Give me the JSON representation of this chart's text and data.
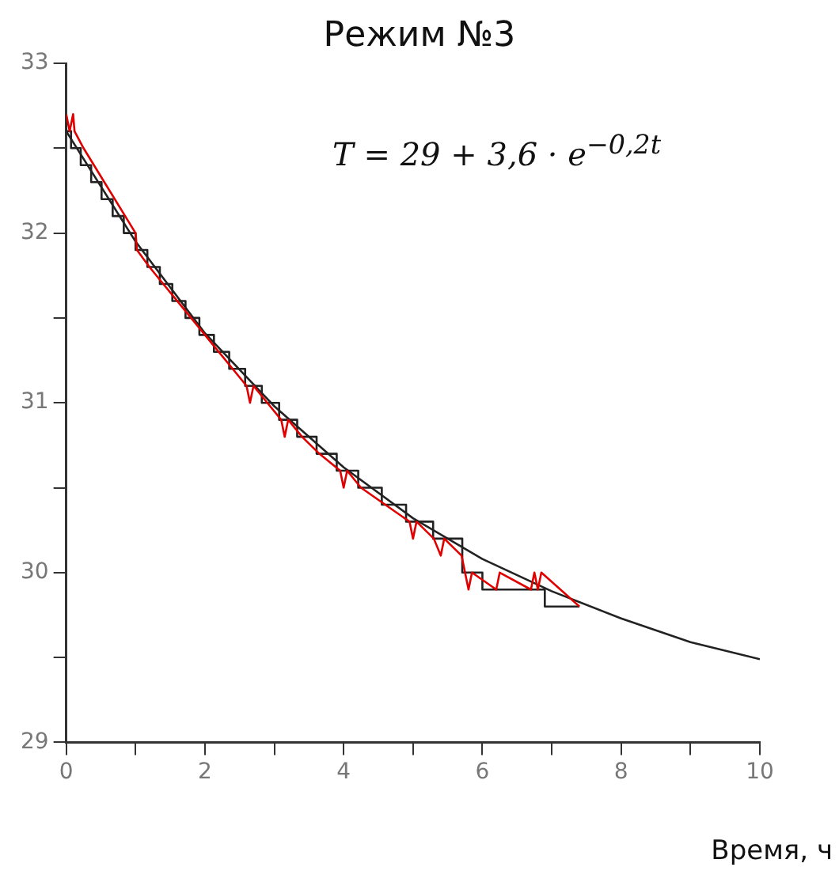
{
  "chart_data": {
    "type": "line",
    "title": "Режим №3",
    "xlabel": "Время, ч",
    "annotations": [
      "T = 29 + 3,6 · e$^{−0,2t}$"
    ],
    "xlim": [
      0,
      10
    ],
    "ylim": [
      29,
      33
    ],
    "xticks": [
      0,
      {
        "value": 1,
        "label": null
      },
      2,
      {
        "value": 3,
        "label": null
      },
      4,
      {
        "value": 5,
        "label": null
      },
      6,
      {
        "value": 7,
        "label": null
      },
      8,
      {
        "value": 9,
        "label": null
      },
      10
    ],
    "yticks": [
      29,
      {
        "value": 29.5,
        "label": null
      },
      30,
      {
        "value": 30.5,
        "label": null
      },
      31,
      {
        "value": 31.5,
        "label": null
      },
      32,
      {
        "value": 32.5,
        "label": null
      },
      33
    ],
    "grid": false,
    "legend": false,
    "marker": "none",
    "line_style": "solid",
    "series": [
      {
        "type": "line",
        "color": "#e00000",
        "x": [
          0,
          0.05,
          0.1,
          0.12,
          0.25,
          0.4,
          0.55,
          0.7,
          0.85,
          1.0,
          1.02,
          1.2,
          1.4,
          1.6,
          1.8,
          2.0,
          2.2,
          2.4,
          2.6,
          2.65,
          2.7,
          2.9,
          3.1,
          3.15,
          3.2,
          3.4,
          3.65,
          3.95,
          4.0,
          4.05,
          4.25,
          4.6,
          4.95,
          5.0,
          5.05,
          5.3,
          5.4,
          5.45,
          5.7,
          5.8,
          5.85,
          6.2,
          6.25,
          6.7,
          6.75,
          6.8,
          6.85,
          7.4
        ],
        "values": [
          32.7,
          32.6,
          32.7,
          32.6,
          32.5,
          32.4,
          32.3,
          32.2,
          32.1,
          32.0,
          31.9,
          31.8,
          31.7,
          31.6,
          31.5,
          31.4,
          31.3,
          31.2,
          31.1,
          31.0,
          31.1,
          31.0,
          30.9,
          30.8,
          30.9,
          30.8,
          30.7,
          30.6,
          30.5,
          30.6,
          30.5,
          30.4,
          30.3,
          30.2,
          30.3,
          30.2,
          30.1,
          30.2,
          30.1,
          29.9,
          30.0,
          29.9,
          30.0,
          29.9,
          30.0,
          29.9,
          30.0,
          29.8
        ]
      },
      {
        "type": "step",
        "color": "#222222",
        "x": [
          0,
          0.07,
          0.21,
          0.36,
          0.51,
          0.67,
          0.83,
          1.0,
          1.17,
          1.35,
          1.53,
          1.72,
          1.92,
          2.13,
          2.35,
          2.58,
          2.82,
          3.07,
          3.33,
          3.61,
          3.9,
          4.21,
          4.55,
          4.9,
          5.29,
          5.71,
          6.0,
          6.9,
          7.4
        ],
        "values": [
          32.7,
          32.6,
          32.5,
          32.4,
          32.3,
          32.2,
          32.1,
          32.0,
          31.9,
          31.8,
          31.7,
          31.6,
          31.5,
          31.4,
          31.3,
          31.2,
          31.1,
          31.0,
          30.9,
          30.8,
          30.7,
          30.6,
          30.5,
          30.4,
          30.3,
          30.2,
          30.0,
          29.9,
          29.8
        ]
      },
      {
        "color": "#222222",
        "x": [
          0,
          1,
          2,
          3,
          4,
          5,
          6,
          7,
          8,
          9,
          10
        ],
        "values": [
          32.6,
          31.95,
          31.41,
          30.98,
          30.62,
          30.32,
          30.08,
          29.89,
          29.73,
          29.59,
          29.49
        ]
      }
    ]
  }
}
